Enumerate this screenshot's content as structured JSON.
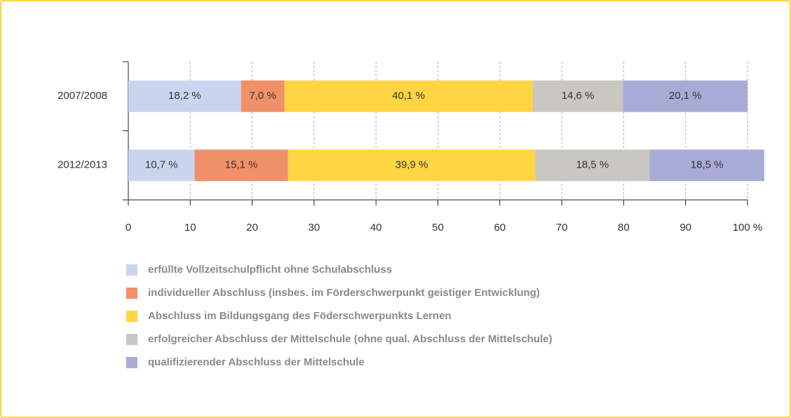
{
  "chart_data": {
    "type": "stacked_bar_horizontal",
    "categories": [
      "2007/2008",
      "2012/2013"
    ],
    "series": [
      {
        "name": "erfüllte Vollzeitschulpflicht ohne Schulabschluss",
        "color": "#c9d5ef",
        "values": [
          18.2,
          10.7
        ],
        "value_labels": [
          "18,2 %",
          "10,7 %"
        ]
      },
      {
        "name": "individueller Abschluss (insbes. im Förderschwerpunkt geistiger Entwicklung)",
        "color": "#f0916a",
        "values": [
          7.0,
          15.1
        ],
        "value_labels": [
          "7,0 %",
          "15,1 %"
        ]
      },
      {
        "name": "Abschluss im Bildungsgang des Föderschwerpunkts Lernen",
        "color": "#ffd543",
        "values": [
          40.1,
          39.9
        ],
        "value_labels": [
          "40,1 %",
          "39,9 %"
        ]
      },
      {
        "name": "erfolgreicher Abschluss der Mittelschule (ohne qual. Abschluss der Mittelschule)",
        "color": "#c9c7c1",
        "values": [
          14.6,
          18.5
        ],
        "value_labels": [
          "14,6 %",
          "18,5 %"
        ]
      },
      {
        "name": "qualifizierender Abschluss der Mittelschule",
        "color": "#a9abd7",
        "values": [
          20.1,
          18.5
        ],
        "value_labels": [
          "20,1 %",
          "18,5 %"
        ]
      }
    ],
    "xlim": [
      0,
      100
    ],
    "xticks": [
      0,
      10,
      20,
      30,
      40,
      50,
      60,
      70,
      80,
      90,
      {
        "value": 100,
        "label": "100 %"
      }
    ],
    "grid": true
  }
}
